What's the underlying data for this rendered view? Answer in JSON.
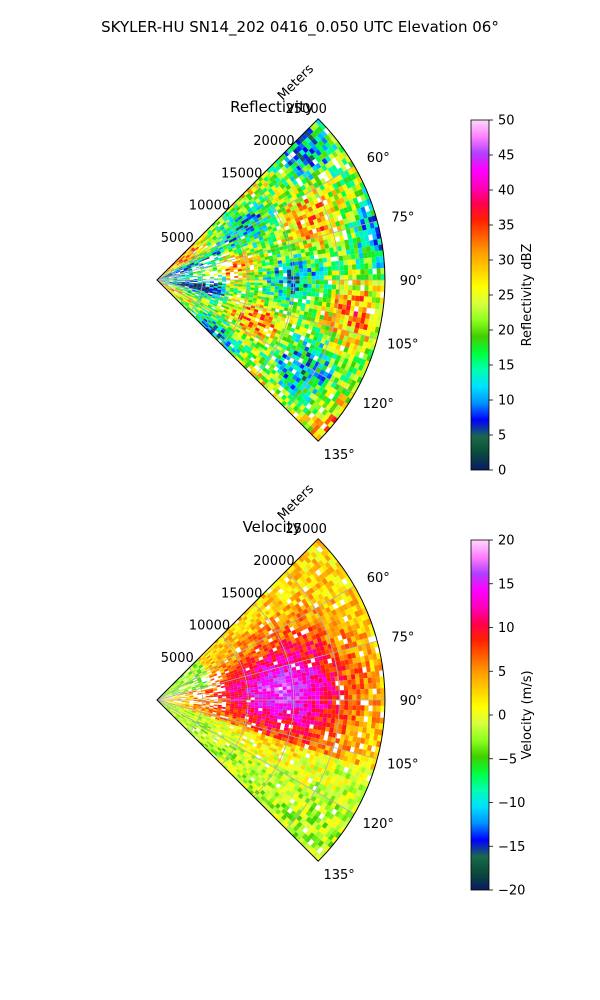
{
  "figure": {
    "suptitle": "SKYLER-HU  SN14_202  0416_0.050 UTC Elevation 06°"
  },
  "chart_data": [
    {
      "type": "heatmap",
      "title": "Reflectivity",
      "projection": "polar-sector",
      "azimuth_range_deg": [
        45,
        135
      ],
      "range_max_m": 25000,
      "range_axis_label": "Meters",
      "range_ticks": [
        "5000",
        "10000",
        "15000",
        "20000",
        "25000"
      ],
      "azimuth_ticks": [
        "60°",
        "75°",
        "90°",
        "105°",
        "120°",
        "135°"
      ],
      "grid": true,
      "colorbar": {
        "label": "Reflectivity dBZ",
        "min": 0,
        "max": 50,
        "ticks": [
          "0",
          "5",
          "10",
          "15",
          "20",
          "25",
          "30",
          "35",
          "40",
          "45",
          "50"
        ]
      }
    },
    {
      "type": "heatmap",
      "title": "Velocity",
      "projection": "polar-sector",
      "azimuth_range_deg": [
        45,
        135
      ],
      "range_max_m": 25000,
      "range_axis_label": "Meters",
      "range_ticks": [
        "5000",
        "10000",
        "15000",
        "20000",
        "25000"
      ],
      "azimuth_ticks": [
        "60°",
        "75°",
        "90°",
        "105°",
        "120°",
        "135°"
      ],
      "grid": true,
      "colorbar": {
        "label": "Velocity (m/s)",
        "min": -20,
        "max": 20,
        "ticks": [
          "−20",
          "−15",
          "−10",
          "−5",
          "0",
          "5",
          "10",
          "15",
          "20"
        ]
      }
    }
  ],
  "colormap": {
    "name": "pyart-nwsref-like",
    "stops": [
      "#0a1a66",
      "#0a4a3a",
      "#1a6a4a",
      "#0000ff",
      "#0090ff",
      "#00e0ff",
      "#00ffb0",
      "#00ff40",
      "#40d000",
      "#90ff20",
      "#d8ff40",
      "#ffff00",
      "#ffd000",
      "#ffa000",
      "#ff6000",
      "#ff2000",
      "#ff0050",
      "#ff00c0",
      "#ff00ff",
      "#b040ff",
      "#ff80ff",
      "#ffd8ff"
    ]
  }
}
